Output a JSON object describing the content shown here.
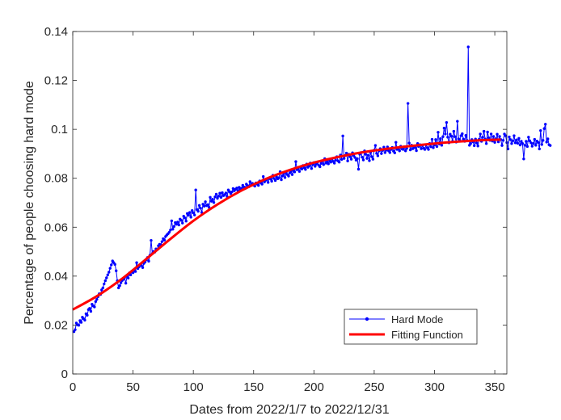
{
  "chart_data": {
    "type": "line",
    "xlabel": "Dates from 2022/1/7 to 2022/12/31",
    "ylabel": "Percentage of people choosing hard mode",
    "xlim": [
      0,
      360
    ],
    "ylim": [
      0,
      0.14
    ],
    "xticks": [
      0,
      50,
      100,
      150,
      200,
      250,
      300,
      350
    ],
    "xtick_labels": [
      "0",
      "50",
      "100",
      "150",
      "200",
      "250",
      "300",
      "350"
    ],
    "yticks": [
      0,
      0.02,
      0.04,
      0.06,
      0.08,
      0.1,
      0.12,
      0.14
    ],
    "ytick_labels": [
      "0",
      "0.02",
      "0.04",
      "0.06",
      "0.08",
      "0.1",
      "0.12",
      "0.14"
    ],
    "grid": false,
    "legend_position": "bottom-right",
    "series": [
      {
        "name": "Hard Mode",
        "kind": "line-with-markers",
        "color": "#0000ff",
        "x_start": 1,
        "x_step": 1,
        "values": [
          0.0173,
          0.0181,
          0.0208,
          0.0201,
          0.0199,
          0.0218,
          0.0211,
          0.0232,
          0.0226,
          0.022,
          0.0246,
          0.024,
          0.0263,
          0.0268,
          0.0256,
          0.0285,
          0.0278,
          0.0274,
          0.0296,
          0.0305,
          0.0316,
          0.0328,
          0.0325,
          0.0344,
          0.0352,
          0.0368,
          0.0381,
          0.0393,
          0.0405,
          0.0416,
          0.0432,
          0.0446,
          0.0462,
          0.0455,
          0.0448,
          0.0422,
          0.0381,
          0.0352,
          0.0361,
          0.0373,
          0.0382,
          0.0387,
          0.0394,
          0.0371,
          0.0399,
          0.0392,
          0.0413,
          0.0405,
          0.042,
          0.0414,
          0.0426,
          0.0419,
          0.0455,
          0.0431,
          0.0438,
          0.0447,
          0.0443,
          0.0435,
          0.0452,
          0.0458,
          0.0467,
          0.0476,
          0.0461,
          0.0485,
          0.0546,
          0.0492,
          0.0501,
          0.0498,
          0.0511,
          0.0508,
          0.0524,
          0.053,
          0.0528,
          0.0541,
          0.0553,
          0.0547,
          0.0562,
          0.0568,
          0.0573,
          0.0579,
          0.0588,
          0.0626,
          0.0592,
          0.0603,
          0.0619,
          0.0612,
          0.0621,
          0.0609,
          0.0633,
          0.0628,
          0.0617,
          0.0645,
          0.0638,
          0.0625,
          0.0656,
          0.0649,
          0.066,
          0.0641,
          0.0668,
          0.0659,
          0.065,
          0.0752,
          0.0672,
          0.0665,
          0.0689,
          0.0678,
          0.066,
          0.0694,
          0.0686,
          0.0704,
          0.0688,
          0.0692,
          0.0681,
          0.0722,
          0.0706,
          0.0714,
          0.0701,
          0.0724,
          0.0735,
          0.0718,
          0.0727,
          0.0739,
          0.0722,
          0.0741,
          0.0729,
          0.0733,
          0.074,
          0.0725,
          0.0752,
          0.0745,
          0.0738,
          0.0744,
          0.0758,
          0.0749,
          0.0755,
          0.076,
          0.0749,
          0.0763,
          0.0754,
          0.0759,
          0.0771,
          0.0764,
          0.0758,
          0.0776,
          0.077,
          0.0765,
          0.0786,
          0.0773,
          0.0779,
          0.0772,
          0.0768,
          0.0781,
          0.0776,
          0.0771,
          0.0789,
          0.0781,
          0.0776,
          0.0807,
          0.0785,
          0.0792,
          0.0795,
          0.0783,
          0.0801,
          0.0797,
          0.0788,
          0.0812,
          0.0799,
          0.0791,
          0.0806,
          0.0798,
          0.0802,
          0.0827,
          0.0794,
          0.081,
          0.0819,
          0.0803,
          0.0824,
          0.0815,
          0.0809,
          0.0822,
          0.0829,
          0.0815,
          0.0833,
          0.0826,
          0.0868,
          0.0835,
          0.0841,
          0.0828,
          0.0847,
          0.0838,
          0.0852,
          0.0843,
          0.0836,
          0.0858,
          0.0845,
          0.085,
          0.0862,
          0.084,
          0.0856,
          0.0864,
          0.0849,
          0.0858,
          0.0866,
          0.0853,
          0.0847,
          0.0861,
          0.0871,
          0.0856,
          0.088,
          0.0862,
          0.0868,
          0.0859,
          0.0874,
          0.0866,
          0.0879,
          0.0869,
          0.0862,
          0.0874,
          0.0888,
          0.0871,
          0.0866,
          0.0895,
          0.0877,
          0.0973,
          0.0881,
          0.0893,
          0.0903,
          0.0871,
          0.0898,
          0.0888,
          0.0878,
          0.0904,
          0.0893,
          0.0885,
          0.0874,
          0.088,
          0.0837,
          0.0898,
          0.0905,
          0.0886,
          0.0875,
          0.0912,
          0.0898,
          0.0881,
          0.0894,
          0.0872,
          0.0905,
          0.0888,
          0.0878,
          0.0915,
          0.0934,
          0.0902,
          0.0892,
          0.0912,
          0.0921,
          0.0901,
          0.0914,
          0.0927,
          0.0905,
          0.0915,
          0.0928,
          0.0912,
          0.0905,
          0.0918,
          0.0926,
          0.0911,
          0.0904,
          0.0947,
          0.0918,
          0.0924,
          0.0912,
          0.0931,
          0.092,
          0.0918,
          0.0929,
          0.0912,
          0.0922,
          0.1106,
          0.0944,
          0.0916,
          0.0935,
          0.0921,
          0.0931,
          0.0925,
          0.0913,
          0.0942,
          0.093,
          0.0937,
          0.0921,
          0.0934,
          0.0923,
          0.0918,
          0.0937,
          0.0925,
          0.0918,
          0.0942,
          0.0929,
          0.0959,
          0.0925,
          0.0936,
          0.0958,
          0.093,
          0.0988,
          0.094,
          0.0962,
          0.0935,
          0.097,
          0.1005,
          0.0981,
          0.1028,
          0.0968,
          0.0945,
          0.098,
          0.0972,
          0.0951,
          0.0992,
          0.097,
          0.0948,
          0.1033,
          0.0961,
          0.0955,
          0.0974,
          0.0982,
          0.096,
          0.0951,
          0.0975,
          0.0955,
          0.1337,
          0.0935,
          0.0942,
          0.0958,
          0.0949,
          0.0933,
          0.096,
          0.0944,
          0.0932,
          0.0959,
          0.0981,
          0.0951,
          0.0968,
          0.0992,
          0.096,
          0.0942,
          0.0989,
          0.0965,
          0.0955,
          0.0981,
          0.0952,
          0.0971,
          0.0947,
          0.0962,
          0.098,
          0.0949,
          0.0971,
          0.0958,
          0.0934,
          0.0955,
          0.0981,
          0.0974,
          0.0946,
          0.092,
          0.0969,
          0.0958,
          0.0942,
          0.0953,
          0.0974,
          0.0945,
          0.0957,
          0.0943,
          0.0963,
          0.0936,
          0.0951,
          0.0942,
          0.0879,
          0.0935,
          0.0951,
          0.093,
          0.0968,
          0.0953,
          0.0945,
          0.0931,
          0.0942,
          0.0959,
          0.0935,
          0.0952,
          0.0946,
          0.092,
          0.0995,
          0.0938,
          0.0955,
          0.1003,
          0.1021,
          0.0948,
          0.0961,
          0.0937,
          0.0934
        ]
      },
      {
        "name": "Fitting Function",
        "kind": "line",
        "color": "#ff0000",
        "x": [
          0,
          20,
          40,
          60,
          80,
          100,
          120,
          140,
          160,
          180,
          200,
          220,
          240,
          260,
          280,
          300,
          320,
          340,
          355
        ],
        "y": [
          0.0263,
          0.0318,
          0.0386,
          0.0466,
          0.0548,
          0.0626,
          0.0693,
          0.075,
          0.0797,
          0.0834,
          0.0864,
          0.0887,
          0.0906,
          0.092,
          0.0932,
          0.0942,
          0.095,
          0.0956,
          0.0958
        ]
      }
    ]
  }
}
